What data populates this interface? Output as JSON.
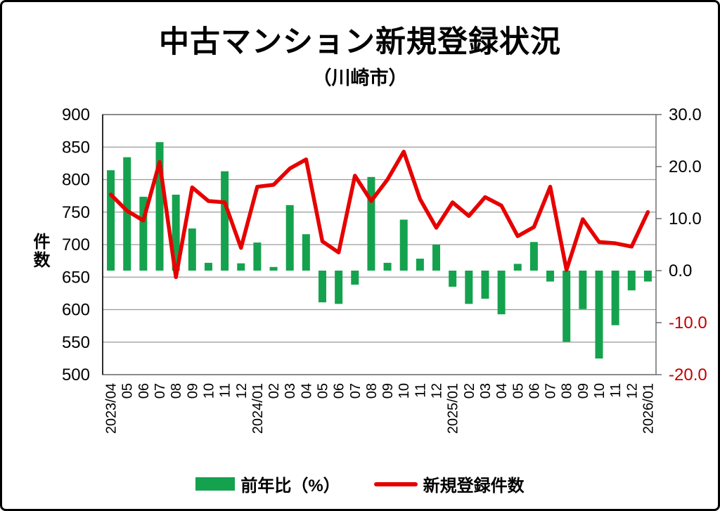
{
  "header": {
    "title": "中古マンション新規登録状況",
    "subtitle": "（川崎市）"
  },
  "colors": {
    "bar_green": "#15a24e",
    "line_red": "#e60000",
    "negative_label_red": "#c00000",
    "grid_gray": "#9a9a9a",
    "border_gray": "#6e6e6e",
    "axis_black": "#000000"
  },
  "legend": {
    "bar_label": "前年比（%）",
    "line_label": "新規登録件数"
  },
  "chart_data": {
    "type": "bar+line combo",
    "title": "中古マンション新規登録状況",
    "subtitle": "（川崎市）",
    "categories": [
      "2023/04",
      "05",
      "06",
      "07",
      "08",
      "09",
      "10",
      "11",
      "12",
      "2024/01",
      "02",
      "03",
      "04",
      "05",
      "06",
      "07",
      "08",
      "09",
      "10",
      "11",
      "12",
      "2025/01",
      "02",
      "03",
      "04",
      "05",
      "06",
      "07",
      "08",
      "09",
      "10",
      "11",
      "12",
      "2026/01"
    ],
    "series": [
      {
        "name": "前年比（%）",
        "type": "bar",
        "axis": "right",
        "values": [
          19.3,
          21.8,
          14.2,
          24.7,
          14.6,
          8.1,
          1.5,
          19.1,
          1.4,
          5.4,
          0.7,
          12.6,
          7.0,
          -6.1,
          -6.4,
          -2.7,
          18.0,
          1.5,
          9.8,
          2.3,
          5.0,
          -3.1,
          -6.4,
          -5.4,
          -8.4,
          1.3,
          5.5,
          -2.1,
          -13.7,
          -7.4,
          -16.9,
          -10.5,
          -3.8,
          -2.1
        ]
      },
      {
        "name": "新規登録件数",
        "type": "line",
        "axis": "left",
        "values": [
          777,
          752,
          737,
          827,
          650,
          788,
          767,
          765,
          695,
          789,
          792,
          817,
          831,
          705,
          688,
          806,
          767,
          800,
          843,
          770,
          726,
          765,
          744,
          773,
          760,
          713,
          727,
          789,
          661,
          739,
          704,
          702,
          697,
          750
        ]
      }
    ],
    "left_axis": {
      "label": "件数",
      "min": 500,
      "max": 900,
      "ticks": [
        900,
        850,
        800,
        750,
        700,
        650,
        600,
        550,
        500
      ]
    },
    "right_axis": {
      "min": -20,
      "max": 30,
      "ticks": [
        30,
        20,
        10,
        0,
        -10,
        -20
      ],
      "tick_decimals": 1
    },
    "grid": true,
    "legend_position": "bottom"
  }
}
